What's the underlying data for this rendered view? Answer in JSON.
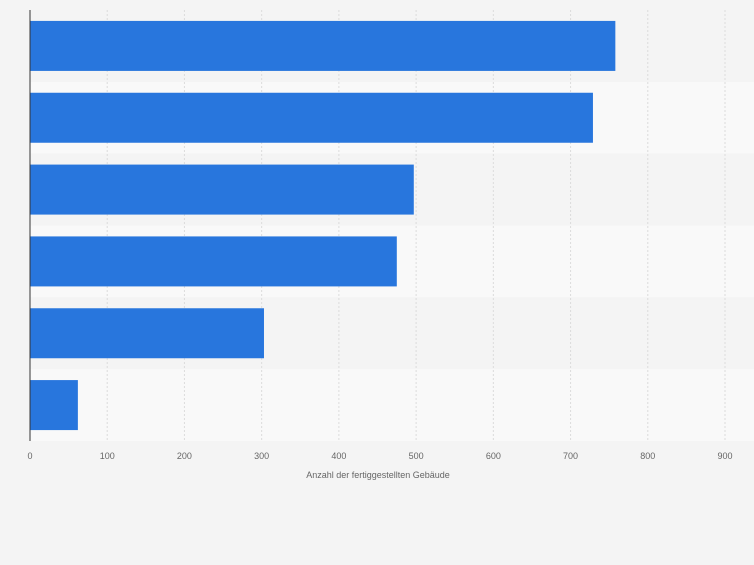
{
  "chart_data": {
    "type": "bar",
    "orientation": "horizontal",
    "title": "",
    "xlabel": "Anzahl der fertiggestellten Gebäude",
    "ylabel": "",
    "categories": [
      "",
      "",
      "",
      "",
      "",
      ""
    ],
    "values": [
      758,
      729,
      497,
      475,
      303,
      62
    ],
    "xlim": [
      0,
      900
    ],
    "xticks": [
      "0",
      "100",
      "200",
      "300",
      "400",
      "500",
      "600",
      "700",
      "800",
      "900"
    ],
    "grid": true,
    "bar_color": "#2876dd",
    "row_band_colors": [
      "#f4f4f4",
      "#f9f9f9"
    ],
    "grid_color": "#dcdcdc",
    "axis_color": "#333333"
  }
}
